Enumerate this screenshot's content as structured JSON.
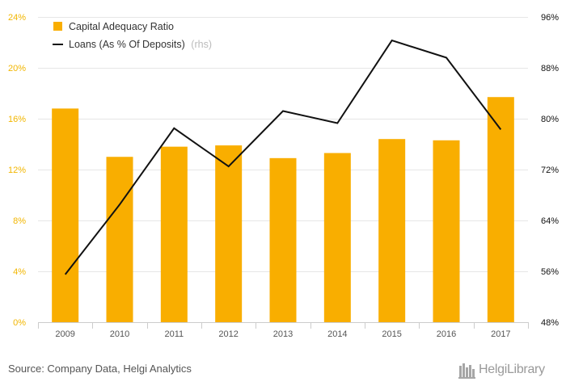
{
  "chart_data": {
    "type": "bar",
    "categories": [
      "2009",
      "2010",
      "2011",
      "2012",
      "2013",
      "2014",
      "2015",
      "2016",
      "2017"
    ],
    "series": [
      {
        "name": "Capital Adequacy Ratio",
        "type": "bar",
        "axis": "left",
        "color": "#F9AE00",
        "values": [
          16.8,
          13.0,
          13.8,
          13.9,
          12.9,
          13.3,
          14.4,
          14.3,
          17.7
        ]
      },
      {
        "name": "Loans (As % Of Deposits)",
        "name_suffix": "(rhs)",
        "type": "line",
        "axis": "right",
        "color": "#111111",
        "values": [
          55.5,
          66.5,
          78.5,
          72.5,
          81.2,
          79.3,
          92.3,
          89.6,
          78.3
        ]
      }
    ],
    "y_left": {
      "ylim": [
        0,
        24
      ],
      "ticks": [
        0,
        4,
        8,
        12,
        16,
        20,
        24
      ],
      "tick_labels": [
        "0%",
        "4%",
        "8%",
        "12%",
        "16%",
        "20%",
        "24%"
      ]
    },
    "y_right": {
      "ylim": [
        48,
        96
      ],
      "ticks": [
        48,
        56,
        64,
        72,
        80,
        88,
        96
      ],
      "tick_labels": [
        "48%",
        "56%",
        "64%",
        "72%",
        "80%",
        "88%",
        "96%"
      ]
    },
    "grid": true,
    "legend_position": "top-left",
    "source": "Source: Company Data, Helgi Analytics",
    "brand": "HelgiLibrary"
  }
}
